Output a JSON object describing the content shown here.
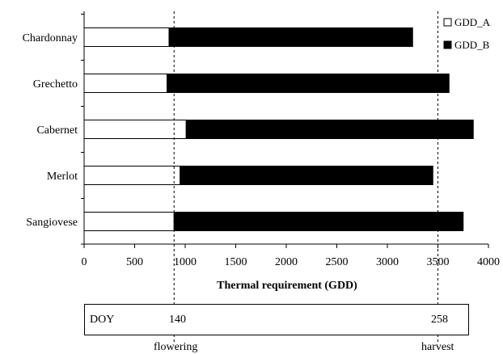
{
  "chart_data": {
    "type": "bar",
    "orientation": "horizontal",
    "stacked": true,
    "categories": [
      "Chardonnay",
      "Grechetto",
      "Cabernet",
      "Merlot",
      "Sangiovese"
    ],
    "series": [
      {
        "name": "GDD_A",
        "values": [
          840,
          820,
          1010,
          950,
          890
        ],
        "color": "#ffffff"
      },
      {
        "name": "GDD_B",
        "values": [
          2410,
          2790,
          2840,
          2500,
          2860
        ],
        "color": "#000000"
      }
    ],
    "xlabel": "Thermal requirement (GDD)",
    "xlim": [
      0,
      4000
    ],
    "xticks": [
      "0",
      "500",
      "1000",
      "1500",
      "2000",
      "2500",
      "3000",
      "3500",
      "4000"
    ],
    "reference_lines": [
      890,
      3500
    ],
    "legend_position": "top-right",
    "grid": false
  },
  "doy": {
    "label": "DOY",
    "flowering_value": "140",
    "harvest_value": "258"
  },
  "phases": {
    "flowering": "flowering",
    "harvest": "harvest"
  }
}
